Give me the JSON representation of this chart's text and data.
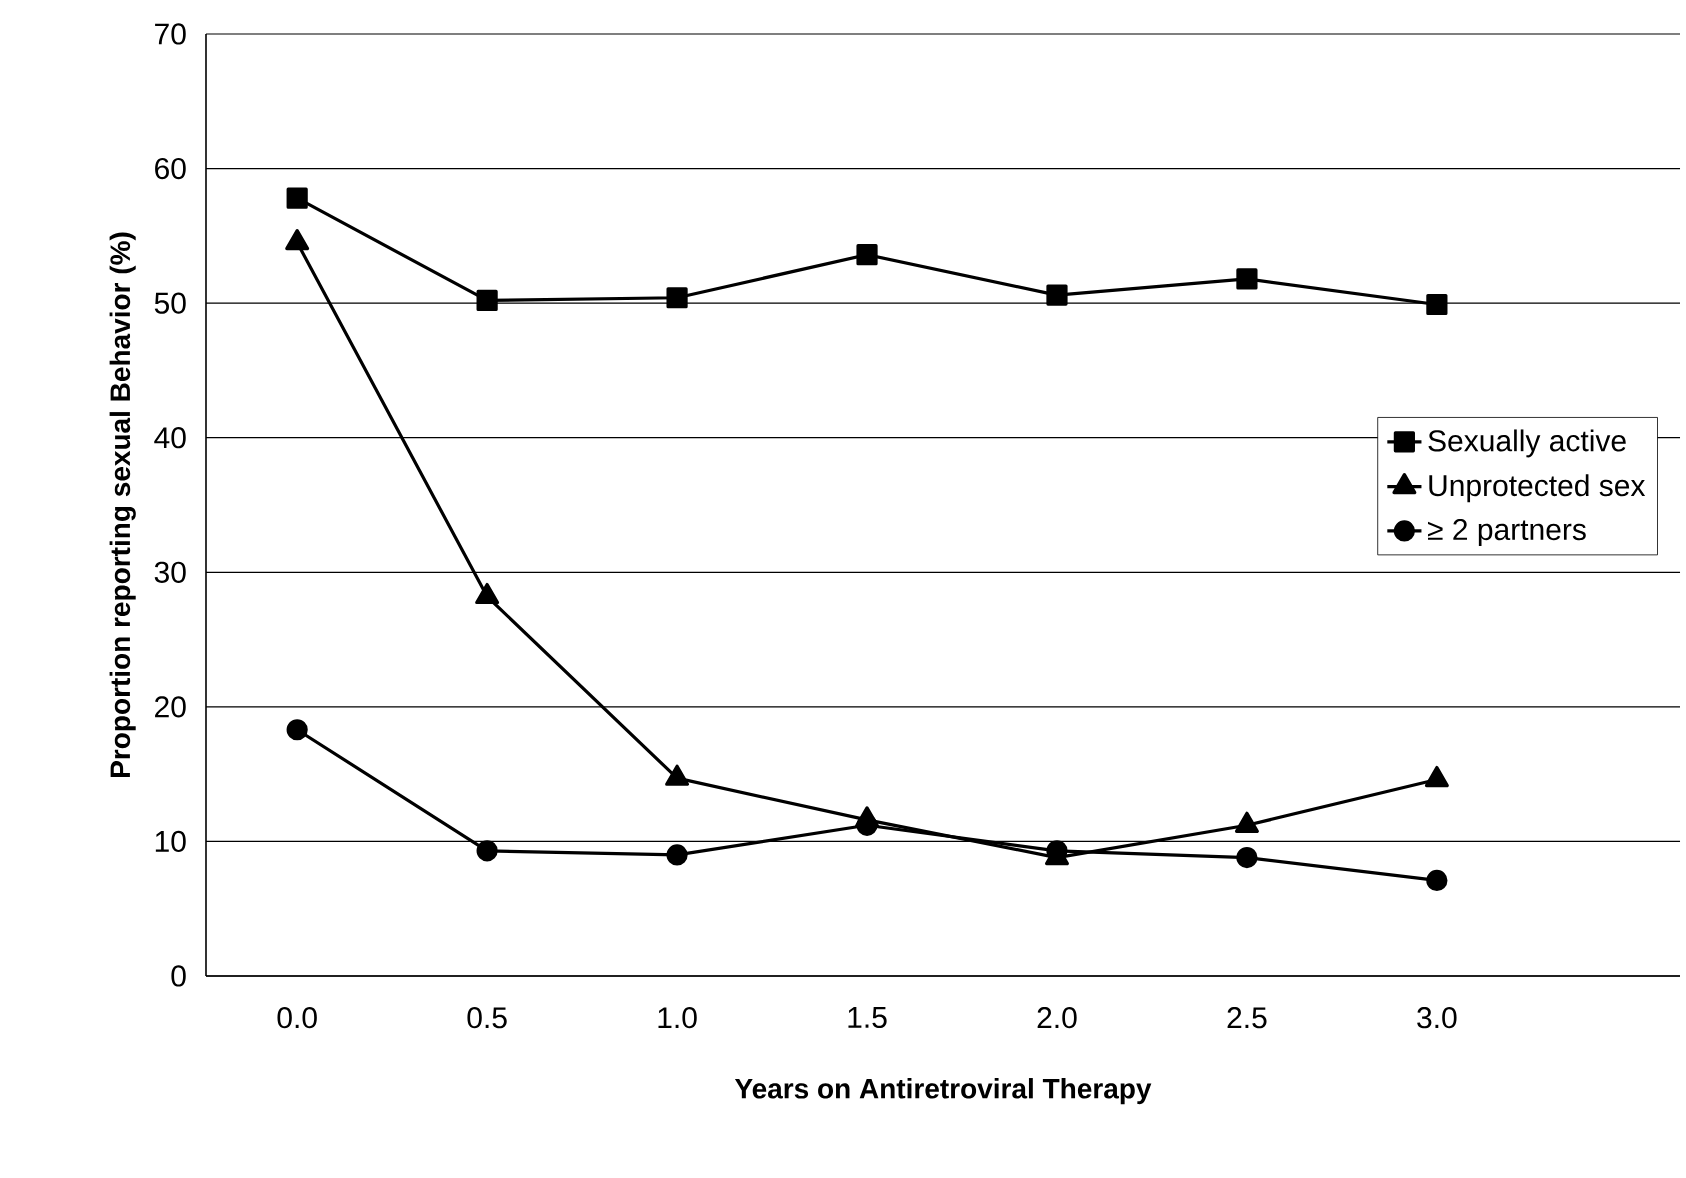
{
  "chart_data": {
    "type": "line",
    "x": [
      0,
      0.5,
      1,
      1.5,
      2,
      2.5,
      3
    ],
    "series": [
      {
        "name": "Sexually active",
        "color": "#000000",
        "marker": "square",
        "values": [
          57.8,
          50.2,
          50.4,
          53.6,
          50.6,
          51.8,
          49.9
        ]
      },
      {
        "name": "Unprotected sex",
        "color": "#000000",
        "marker": "triangle",
        "values": [
          54.5,
          28.2,
          14.7,
          11.6,
          8.8,
          11.2,
          14.6
        ]
      },
      {
        "name": "≥ 2 partners",
        "color": "#000000",
        "marker": "circle",
        "values": [
          18.3,
          9.3,
          9.0,
          11.2,
          9.3,
          8.8,
          7.1
        ]
      }
    ],
    "xlabel": "Years on Antiretroviral Therapy",
    "ylabel": "Proportion  reporting sexual Behavior (%)",
    "xlim": [
      -0.24,
      3.64
    ],
    "xticks": [
      {
        "value": 0,
        "label": "0.0"
      },
      {
        "value": 0.5,
        "label": "0.5"
      },
      {
        "value": 1,
        "label": "1.0"
      },
      {
        "value": 1.5,
        "label": "1.5"
      },
      {
        "value": 2,
        "label": "2.0"
      },
      {
        "value": 2.5,
        "label": "2.5"
      },
      {
        "value": 3,
        "label": "3.0"
      }
    ],
    "ylim": [
      0,
      70
    ],
    "yticks": [
      0,
      10,
      20,
      30,
      40,
      50,
      60,
      70
    ],
    "grid": "y",
    "legend": "right",
    "line_style": "solid"
  }
}
